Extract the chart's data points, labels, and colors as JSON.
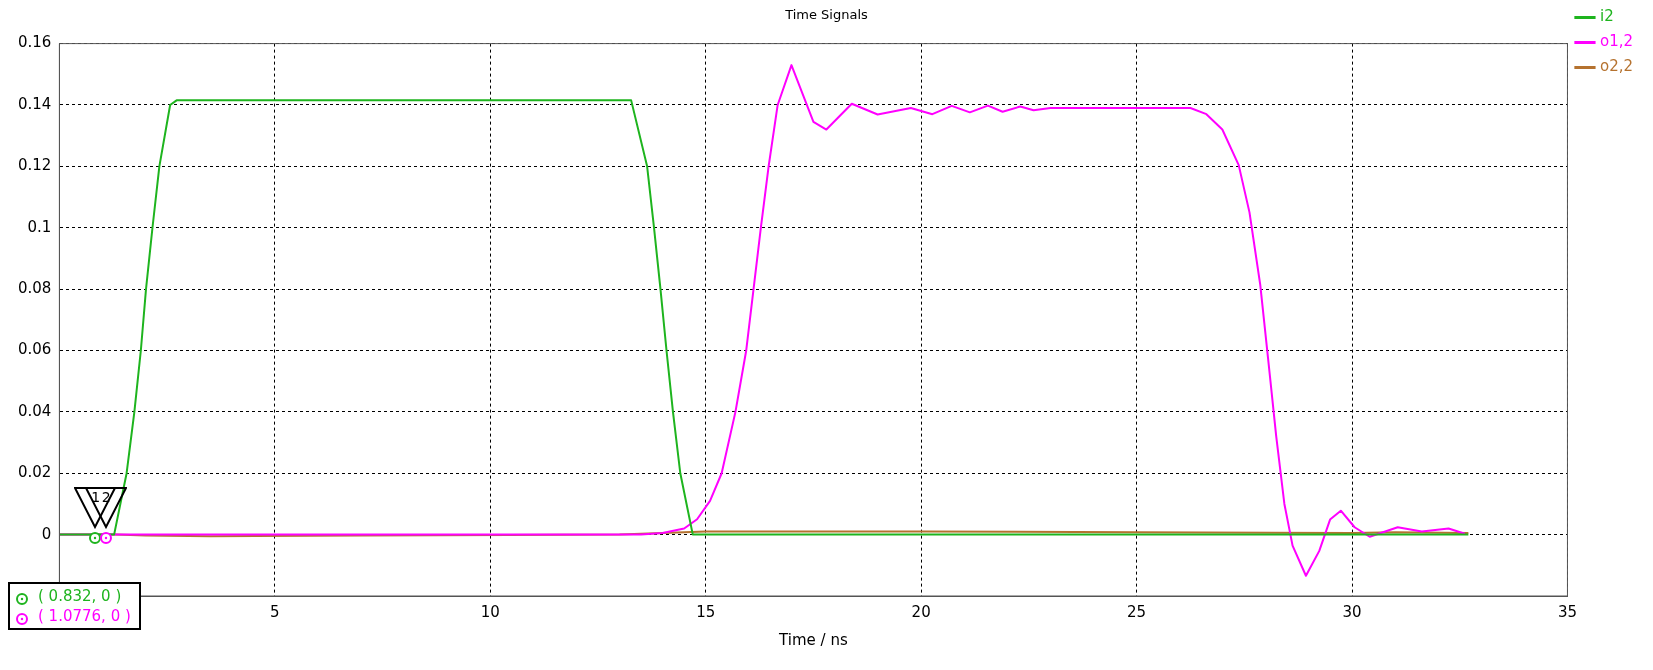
{
  "chart_data": {
    "type": "line",
    "title": "Time Signals",
    "xlabel": "Time / ns",
    "xlim": [
      0,
      35
    ],
    "xticks": [
      5,
      10,
      15,
      20,
      25,
      30,
      35
    ],
    "ylim": [
      -0.02,
      0.16
    ],
    "yticks": [
      0,
      0.02,
      0.04,
      0.06,
      0.08,
      0.1,
      0.12,
      0.14,
      0.16
    ],
    "grid": true,
    "legend": "top right",
    "marker": "none",
    "line_style": "solid",
    "series": [
      {
        "name": "i2",
        "color": "#1eb41e",
        "x": [
          0,
          1.27,
          1.56,
          1.74,
          1.89,
          2.01,
          2.16,
          2.32,
          2.57,
          2.72,
          13.27,
          13.64,
          13.8,
          13.95,
          14.09,
          14.24,
          14.41,
          14.7,
          32.7
        ],
        "values": [
          0,
          0,
          0.02,
          0.04,
          0.06,
          0.08,
          0.1,
          0.12,
          0.14,
          0.1415,
          0.1415,
          0.12,
          0.1,
          0.08,
          0.06,
          0.04,
          0.02,
          0,
          0
        ]
      },
      {
        "name": "o1,2",
        "color": "#ff00ff",
        "x": [
          0,
          13.5,
          14,
          14.5,
          14.8,
          15.1,
          15.37,
          15.69,
          15.94,
          16.11,
          16.28,
          16.46,
          16.67,
          16.99,
          17.5,
          17.8,
          18.39,
          18.99,
          19.76,
          20.26,
          20.71,
          21.13,
          21.55,
          21.89,
          22.3,
          22.61,
          23,
          26.25,
          26.62,
          26.99,
          27.37,
          27.62,
          27.87,
          28.05,
          28.24,
          28.43,
          28.62,
          28.93,
          29.24,
          29.49,
          29.74,
          30.06,
          30.41,
          31.06,
          31.62,
          32.24,
          32.62
        ],
        "values": [
          0,
          0,
          0.0005,
          0.002,
          0.005,
          0.011,
          0.02,
          0.04,
          0.06,
          0.08,
          0.1,
          0.12,
          0.14,
          0.153,
          0.1345,
          0.132,
          0.1404,
          0.1369,
          0.139,
          0.137,
          0.1397,
          0.1376,
          0.1398,
          0.1378,
          0.1395,
          0.1383,
          0.139,
          0.139,
          0.137,
          0.132,
          0.1204,
          0.105,
          0.0814,
          0.0576,
          0.0321,
          0.01,
          -0.0036,
          -0.0134,
          -0.0053,
          0.0049,
          0.0078,
          0.0024,
          -0.0007,
          0.0024,
          0.001,
          0.002,
          0.0003
        ]
      },
      {
        "name": "o2,2",
        "color": "#b5722f",
        "x": [
          0,
          1.3,
          2,
          3.5,
          7,
          13,
          14,
          15,
          20,
          25,
          30,
          31,
          32.7
        ],
        "values": [
          0,
          0,
          -0.0003,
          -0.0005,
          -0.0003,
          0,
          0.0005,
          0.001,
          0.001,
          0.0008,
          0.0005,
          0.0008,
          0.0005
        ]
      }
    ],
    "annotations": [
      {
        "text": "1",
        "x": 0.832,
        "y": 0
      },
      {
        "text": "2",
        "x": 1.0776,
        "y": 0
      },
      "( 0.832, 0 )",
      "( 1.0776, 0 )"
    ]
  }
}
